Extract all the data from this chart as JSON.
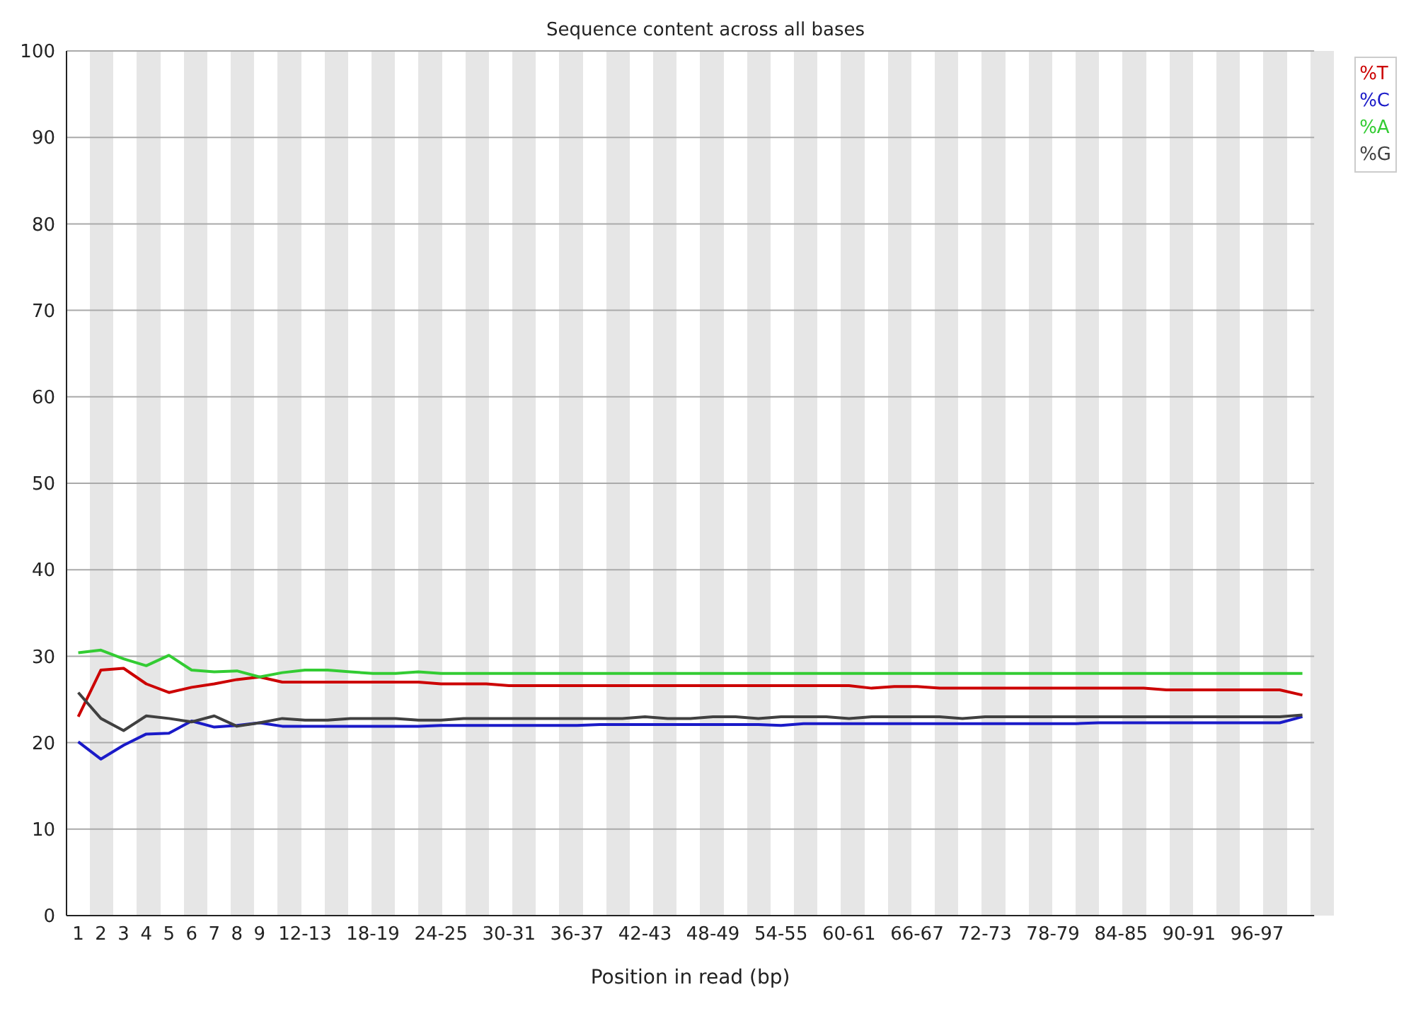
{
  "chart_data": {
    "type": "line",
    "title": "Sequence content across all bases",
    "xlabel": "Position in read (bp)",
    "categories": [
      "1",
      "2",
      "3",
      "4",
      "5",
      "6",
      "7",
      "8",
      "9",
      null,
      "12-13",
      null,
      null,
      "18-19",
      null,
      null,
      "24-25",
      null,
      null,
      "30-31",
      null,
      null,
      "36-37",
      null,
      null,
      "42-43",
      null,
      null,
      "48-49",
      null,
      null,
      "54-55",
      null,
      null,
      "60-61",
      null,
      null,
      "66-67",
      null,
      null,
      "72-73",
      null,
      null,
      "78-79",
      null,
      null,
      "84-85",
      null,
      null,
      "90-91",
      null,
      null,
      "96-97",
      null,
      null
    ],
    "series": [
      {
        "name": "%T",
        "color": "#cc0000",
        "values": [
          23.0,
          28.4,
          28.6,
          26.8,
          25.8,
          26.4,
          26.8,
          27.3,
          27.6,
          27.0,
          27.0,
          27.0,
          27.0,
          27.0,
          27.0,
          27.0,
          26.8,
          26.8,
          26.8,
          26.6,
          26.6,
          26.6,
          26.6,
          26.6,
          26.6,
          26.6,
          26.6,
          26.6,
          26.6,
          26.6,
          26.6,
          26.6,
          26.6,
          26.6,
          26.6,
          26.3,
          26.5,
          26.5,
          26.3,
          26.3,
          26.3,
          26.3,
          26.3,
          26.3,
          26.3,
          26.3,
          26.3,
          26.3,
          26.1,
          26.1,
          26.1,
          26.1,
          26.1,
          26.1,
          25.5
        ]
      },
      {
        "name": "%C",
        "color": "#1a1ac8",
        "values": [
          20.1,
          18.1,
          19.7,
          21.0,
          21.1,
          22.5,
          21.8,
          22.0,
          22.3,
          21.9,
          21.9,
          21.9,
          21.9,
          21.9,
          21.9,
          21.9,
          22.0,
          22.0,
          22.0,
          22.0,
          22.0,
          22.0,
          22.0,
          22.1,
          22.1,
          22.1,
          22.1,
          22.1,
          22.1,
          22.1,
          22.1,
          22.0,
          22.2,
          22.2,
          22.2,
          22.2,
          22.2,
          22.2,
          22.2,
          22.2,
          22.2,
          22.2,
          22.2,
          22.2,
          22.2,
          22.3,
          22.3,
          22.3,
          22.3,
          22.3,
          22.3,
          22.3,
          22.3,
          22.3,
          23.0
        ]
      },
      {
        "name": "%A",
        "color": "#33cc33",
        "values": [
          30.4,
          30.7,
          29.7,
          28.9,
          30.1,
          28.4,
          28.2,
          28.3,
          27.6,
          28.1,
          28.4,
          28.4,
          28.2,
          28.0,
          28.0,
          28.2,
          28.0,
          28.0,
          28.0,
          28.0,
          28.0,
          28.0,
          28.0,
          28.0,
          28.0,
          28.0,
          28.0,
          28.0,
          28.0,
          28.0,
          28.0,
          28.0,
          28.0,
          28.0,
          28.0,
          28.0,
          28.0,
          28.0,
          28.0,
          28.0,
          28.0,
          28.0,
          28.0,
          28.0,
          28.0,
          28.0,
          28.0,
          28.0,
          28.0,
          28.0,
          28.0,
          28.0,
          28.0,
          28.0,
          28.0
        ]
      },
      {
        "name": "%G",
        "color": "#404040",
        "values": [
          25.8,
          22.8,
          21.4,
          23.1,
          22.8,
          22.4,
          23.1,
          21.9,
          22.3,
          22.8,
          22.6,
          22.6,
          22.8,
          22.8,
          22.8,
          22.6,
          22.6,
          22.8,
          22.8,
          22.8,
          22.8,
          22.8,
          22.8,
          22.8,
          22.8,
          23.0,
          22.8,
          22.8,
          23.0,
          23.0,
          22.8,
          23.0,
          23.0,
          23.0,
          22.8,
          23.0,
          23.0,
          23.0,
          23.0,
          22.8,
          23.0,
          23.0,
          23.0,
          23.0,
          23.0,
          23.0,
          23.0,
          23.0,
          23.0,
          23.0,
          23.0,
          23.0,
          23.0,
          23.0,
          23.2
        ]
      }
    ],
    "ylim": [
      0,
      100
    ],
    "yticks": [
      0,
      10,
      20,
      30,
      40,
      50,
      60,
      70,
      80,
      90,
      100
    ],
    "grid": "y",
    "legend": "top right"
  }
}
